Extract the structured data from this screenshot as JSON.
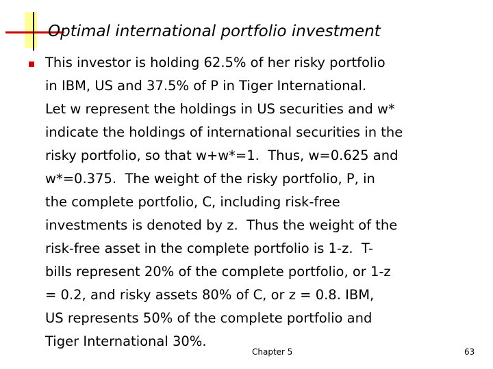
{
  "slide": {
    "title": "Optimal international portfolio investment",
    "body_lines": [
      "This investor is holding 62.5% of her risky portfolio",
      "in IBM, US and 37.5% of P in Tiger International.",
      "Let w represent the holdings in US securities and w*",
      "indicate the holdings of international securities in the",
      "risky portfolio, so that w+w*=1.  Thus, w=0.625 and",
      "w*=0.375.  The weight of the risky portfolio, P, in",
      "the complete portfolio, C, including risk-free",
      "investments is denoted by z.  Thus the weight of the",
      "risk-free asset in the complete portfolio is 1-z.  T-",
      "bills represent 20% of the complete portfolio, or 1-z",
      "= 0.2, and risky assets 80% of C, or z = 0.8. IBM,",
      "US represents 50% of the complete portfolio and",
      "Tiger International 30%."
    ],
    "footer_chapter": "Chapter 5",
    "page_number": "63"
  },
  "colors": {
    "accent_red": "#cc0000",
    "accent_yellow": "#ffff99",
    "text": "#000000",
    "background": "#ffffff"
  }
}
